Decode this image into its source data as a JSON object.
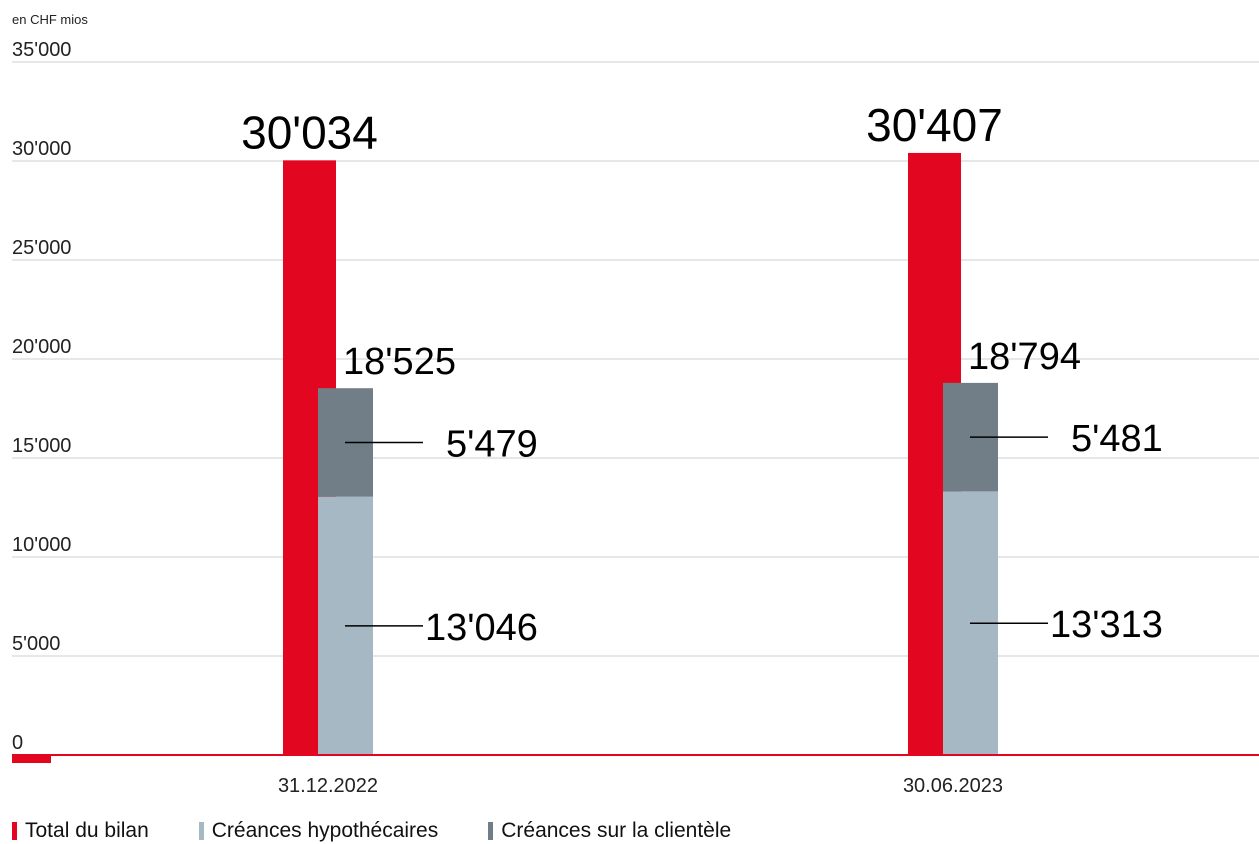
{
  "chart_data": {
    "type": "bar",
    "unit_label": "en CHF mios",
    "categories": [
      "31.12.2022",
      "30.06.2023"
    ],
    "ylim": [
      0,
      35000
    ],
    "yticks": [
      {
        "value": 0,
        "label": "0"
      },
      {
        "value": 5000,
        "label": "5'000"
      },
      {
        "value": 10000,
        "label": "10'000"
      },
      {
        "value": 15000,
        "label": "15'000"
      },
      {
        "value": 20000,
        "label": "20'000"
      },
      {
        "value": 25000,
        "label": "25'000"
      },
      {
        "value": 30000,
        "label": "30'000"
      },
      {
        "value": 35000,
        "label": "35'000"
      }
    ],
    "grid": true,
    "legend_position": "bottom-left",
    "series": [
      {
        "name": "Total du bilan",
        "color": "#e30620",
        "values": [
          30034,
          30407
        ],
        "labels": [
          "30'034",
          "30'407"
        ]
      },
      {
        "name": "Créances hypothécaires",
        "color": "#a6b8c3",
        "values": [
          13046,
          13313
        ],
        "labels": [
          "13'046",
          "13'313"
        ]
      },
      {
        "name": "Créances sur la clientèle",
        "color": "#717e87",
        "values": [
          5479,
          5481
        ],
        "labels": [
          "5'479",
          "5'481"
        ]
      }
    ],
    "stack_totals": {
      "values": [
        18525,
        18794
      ],
      "labels": [
        "18'525",
        "18'794"
      ]
    }
  }
}
